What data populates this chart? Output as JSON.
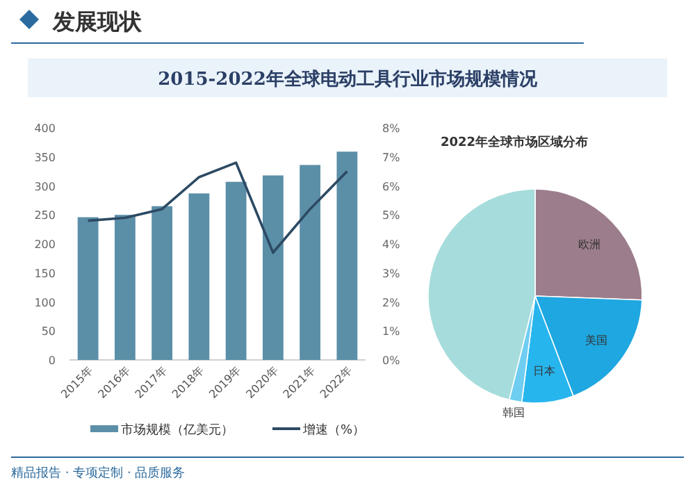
{
  "chart_data": [
    {
      "type": "bar",
      "title": "2015-2022年全球电动工具行业市场规模情况",
      "categories": [
        "2015年",
        "2016年",
        "2017年",
        "2018年",
        "2019年",
        "2020年",
        "2021年",
        "2022年"
      ],
      "series": [
        {
          "name": "市场规模（亿美元）",
          "type": "bar",
          "color": "#5b8fa8",
          "values": [
            246,
            250,
            265,
            287,
            307,
            318,
            336,
            359
          ]
        },
        {
          "name": "增速（%）",
          "type": "line",
          "axis": "y2",
          "color": "#2d4a63",
          "values": [
            4.8,
            4.9,
            5.2,
            6.3,
            6.8,
            3.7,
            5.2,
            6.5
          ]
        }
      ],
      "ylim": [
        0,
        400
      ],
      "yticks": [
        0,
        50,
        100,
        150,
        200,
        250,
        300,
        350,
        400
      ],
      "y2lim": [
        0,
        8
      ],
      "y2ticks": [
        {
          "value": 0,
          "label": "0%"
        },
        {
          "value": 1,
          "label": "1%"
        },
        {
          "value": 2,
          "label": "2%"
        },
        {
          "value": 3,
          "label": "3%"
        },
        {
          "value": 4,
          "label": "4%"
        },
        {
          "value": 5,
          "label": "5%"
        },
        {
          "value": 6,
          "label": "6%"
        },
        {
          "value": 7,
          "label": "7%"
        },
        {
          "value": 8,
          "label": "8%"
        }
      ],
      "legend": "bottom",
      "annotations": [
        "发展现状",
        "精品报告 · 专项定制 · 品质服务"
      ]
    },
    {
      "type": "pie",
      "title": "2022年全球市场区域分布",
      "categories": [
        "欧洲",
        "美国",
        "日本",
        "韩国",
        null
      ],
      "values": [
        25.6,
        18.6,
        7.8,
        1.9,
        46.1
      ],
      "colors": [
        "#9c7d8c",
        "#1ea7e0",
        "#27b5ee",
        "#6fcdf2",
        "#a6dcdc"
      ]
    }
  ]
}
